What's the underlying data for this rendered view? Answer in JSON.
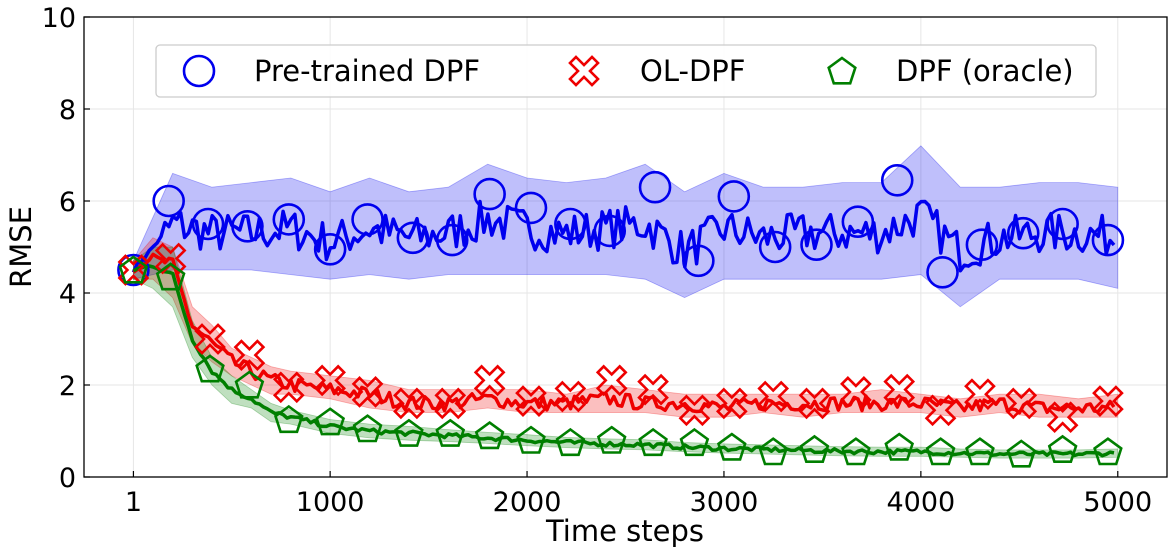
{
  "chart_data": {
    "type": "line",
    "title": "",
    "xlabel": "Time steps",
    "ylabel": "RMSE",
    "xlim": [
      -250,
      5250
    ],
    "ylim": [
      0,
      10
    ],
    "xticks": [
      1,
      1000,
      2000,
      3000,
      4000,
      5000
    ],
    "xtick_labels": [
      "1",
      "1000",
      "2000",
      "3000",
      "4000",
      "5000"
    ],
    "yticks": [
      0,
      2,
      4,
      6,
      8,
      10
    ],
    "ytick_labels": [
      "0",
      "2",
      "4",
      "6",
      "8",
      "10"
    ],
    "grid": true,
    "legend_position": "top",
    "series": [
      {
        "name": "Pre-trained DPF",
        "color": "#0000ee",
        "marker": "circle",
        "x": [
          1,
          200,
          400,
          600,
          800,
          1000,
          1200,
          1400,
          1600,
          1800,
          2000,
          2200,
          2400,
          2600,
          2800,
          3000,
          3200,
          3400,
          3600,
          3800,
          4000,
          4200,
          4400,
          4600,
          4800,
          5000
        ],
        "mean": [
          4.5,
          5.5,
          5.3,
          5.3,
          5.4,
          5.1,
          5.4,
          5.2,
          5.3,
          5.6,
          5.4,
          5.3,
          5.4,
          5.5,
          4.9,
          5.4,
          5.2,
          5.3,
          5.3,
          5.3,
          5.7,
          4.9,
          5.2,
          5.3,
          5.3,
          5.2
        ],
        "lower": [
          4.3,
          4.5,
          4.5,
          4.5,
          4.4,
          4.3,
          4.4,
          4.3,
          4.4,
          4.4,
          4.4,
          4.4,
          4.4,
          4.3,
          3.9,
          4.3,
          4.3,
          4.3,
          4.3,
          4.3,
          4.4,
          3.7,
          4.3,
          4.3,
          4.3,
          4.1
        ],
        "upper": [
          4.7,
          6.6,
          6.3,
          6.4,
          6.5,
          6.2,
          6.5,
          6.2,
          6.3,
          6.8,
          6.5,
          6.4,
          6.5,
          6.8,
          6.2,
          6.6,
          6.3,
          6.3,
          6.4,
          6.4,
          7.2,
          6.3,
          6.3,
          6.4,
          6.4,
          6.3
        ],
        "markers_x": [
          1,
          180,
          380,
          580,
          790,
          1000,
          1190,
          1420,
          1620,
          1810,
          2020,
          2220,
          2420,
          2650,
          2870,
          3050,
          3260,
          3470,
          3680,
          3880,
          4110,
          4310,
          4520,
          4720,
          4950
        ],
        "markers_y": [
          4.5,
          6.0,
          5.5,
          5.45,
          5.6,
          4.95,
          5.6,
          5.2,
          5.15,
          6.15,
          5.85,
          5.5,
          5.35,
          6.3,
          4.7,
          6.1,
          5.0,
          5.05,
          5.55,
          6.45,
          4.45,
          5.05,
          5.3,
          5.5,
          5.15
        ]
      },
      {
        "name": "OL-DPF",
        "color": "#ee0000",
        "marker": "x",
        "x": [
          1,
          100,
          200,
          300,
          400,
          500,
          600,
          700,
          800,
          1000,
          1200,
          1400,
          1600,
          1800,
          2000,
          2200,
          2400,
          2600,
          2800,
          3000,
          3200,
          3400,
          3600,
          3800,
          4000,
          4200,
          4400,
          4600,
          4800,
          5000
        ],
        "mean": [
          4.5,
          4.8,
          4.6,
          3.3,
          2.9,
          2.5,
          2.3,
          2.1,
          2.0,
          1.9,
          1.8,
          1.6,
          1.6,
          1.7,
          1.6,
          1.6,
          1.7,
          1.6,
          1.6,
          1.5,
          1.6,
          1.6,
          1.6,
          1.6,
          1.6,
          1.5,
          1.6,
          1.5,
          1.5,
          1.5
        ],
        "lower": [
          4.3,
          4.3,
          3.9,
          2.9,
          2.5,
          2.2,
          2.0,
          1.8,
          1.8,
          1.7,
          1.5,
          1.4,
          1.4,
          1.5,
          1.4,
          1.4,
          1.4,
          1.4,
          1.3,
          1.3,
          1.4,
          1.3,
          1.4,
          1.4,
          1.4,
          1.3,
          1.4,
          1.3,
          1.3,
          1.3
        ],
        "upper": [
          4.7,
          5.2,
          5.0,
          3.7,
          3.3,
          2.8,
          2.6,
          2.4,
          2.3,
          2.2,
          2.1,
          1.9,
          1.9,
          1.9,
          1.9,
          1.8,
          2.0,
          1.9,
          1.8,
          1.8,
          1.8,
          1.8,
          1.8,
          1.9,
          1.8,
          1.7,
          1.8,
          1.8,
          1.7,
          1.8
        ],
        "markers_x": [
          1,
          190,
          390,
          590,
          790,
          1000,
          1190,
          1400,
          1610,
          1810,
          2020,
          2220,
          2430,
          2640,
          2850,
          3040,
          3250,
          3460,
          3670,
          3890,
          4100,
          4300,
          4510,
          4720,
          4950
        ],
        "markers_y": [
          4.5,
          4.75,
          3.0,
          2.65,
          1.95,
          2.1,
          1.85,
          1.6,
          1.6,
          2.1,
          1.65,
          1.75,
          2.1,
          1.9,
          1.45,
          1.6,
          1.75,
          1.6,
          1.85,
          1.9,
          1.45,
          1.8,
          1.6,
          1.3,
          1.65
        ]
      },
      {
        "name": "DPF (oracle)",
        "color": "#007f00",
        "marker": "pentagon",
        "x": [
          1,
          100,
          200,
          300,
          400,
          500,
          600,
          700,
          800,
          1000,
          1200,
          1400,
          1600,
          1800,
          2000,
          2200,
          2400,
          2600,
          2800,
          3000,
          3200,
          3400,
          3600,
          3800,
          4000,
          4200,
          4400,
          4600,
          4800,
          5000
        ],
        "mean": [
          4.5,
          4.6,
          4.4,
          3.0,
          2.3,
          1.9,
          1.7,
          1.4,
          1.3,
          1.1,
          1.0,
          0.95,
          0.9,
          0.85,
          0.8,
          0.75,
          0.72,
          0.7,
          0.65,
          0.62,
          0.6,
          0.58,
          0.56,
          0.55,
          0.55,
          0.52,
          0.5,
          0.5,
          0.5,
          0.52
        ],
        "lower": [
          4.3,
          4.1,
          3.7,
          2.6,
          2.0,
          1.6,
          1.5,
          1.2,
          1.15,
          0.95,
          0.85,
          0.8,
          0.77,
          0.73,
          0.68,
          0.64,
          0.61,
          0.59,
          0.55,
          0.52,
          0.5,
          0.48,
          0.46,
          0.45,
          0.45,
          0.43,
          0.41,
          0.41,
          0.41,
          0.43
        ],
        "upper": [
          4.7,
          5.0,
          5.0,
          3.4,
          2.6,
          2.2,
          1.9,
          1.6,
          1.45,
          1.25,
          1.15,
          1.1,
          1.03,
          0.97,
          0.92,
          0.86,
          0.83,
          0.81,
          0.75,
          0.72,
          0.7,
          0.68,
          0.66,
          0.65,
          0.65,
          0.61,
          0.59,
          0.59,
          0.59,
          0.61
        ],
        "markers_x": [
          1,
          190,
          390,
          590,
          790,
          1000,
          1190,
          1400,
          1610,
          1810,
          2020,
          2220,
          2430,
          2640,
          2850,
          3040,
          3250,
          3460,
          3670,
          3890,
          4100,
          4300,
          4510,
          4720,
          4950
        ],
        "markers_y": [
          4.5,
          4.35,
          2.35,
          2.0,
          1.25,
          1.2,
          1.05,
          0.95,
          0.95,
          0.9,
          0.8,
          0.75,
          0.8,
          0.75,
          0.75,
          0.65,
          0.55,
          0.6,
          0.55,
          0.65,
          0.55,
          0.55,
          0.5,
          0.6,
          0.55
        ]
      }
    ]
  }
}
